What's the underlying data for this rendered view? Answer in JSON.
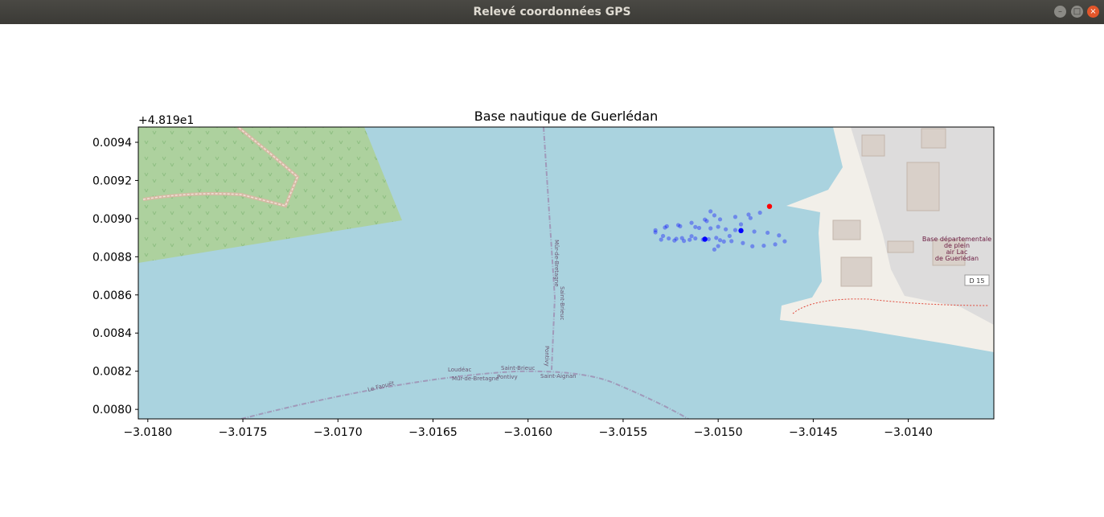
{
  "window": {
    "title": "Relevé coordonnées GPS",
    "buttons": {
      "minimize": "–",
      "maximize": "□",
      "close": "×"
    }
  },
  "colors": {
    "water": "#aad3df",
    "forest": "#add19e",
    "land": "#f2efe9",
    "built": "#dddcdc",
    "buildings": "#d9d0c9",
    "trace": "#0000ff",
    "marker": "#ff0000"
  },
  "map_labels": {
    "poi_line1": "Base départementale",
    "poi_line2": "de plein",
    "poi_line3": "air Lac",
    "poi_line4": "de Guerlédan",
    "road": "D 15",
    "boundary_a": "Loudéac",
    "boundary_b": "Saint-Brieuc",
    "boundary_c": "Mûr-de-Bretagne",
    "boundary_d": "Pontivy",
    "boundary_e": "Saint-Aignan",
    "boundary_f": "Mûr-de-Bretagne",
    "boundary_g": "Saint-Brieuc",
    "boundary_h": "Pontivy",
    "boundary_i": "Le Faouët"
  },
  "chart_data": {
    "type": "scatter",
    "title": "Base nautique de Guerlédan",
    "xlabel": "",
    "ylabel": "",
    "y_offset_label": "+4.819e1",
    "xlim": [
      -3.01805,
      -3.01355
    ],
    "ylim": [
      0.00795,
      0.00948
    ],
    "xticks": [
      -3.018,
      -3.0175,
      -3.017,
      -3.0165,
      -3.016,
      -3.0155,
      -3.015,
      -3.0145,
      -3.014
    ],
    "xtick_labels": [
      "−3.0180",
      "−3.0175",
      "−3.0170",
      "−3.0165",
      "−3.0160",
      "−3.0155",
      "−3.0150",
      "−3.0145",
      "−3.0140"
    ],
    "yticks": [
      0.008,
      0.0082,
      0.0084,
      0.0086,
      0.0088,
      0.009,
      0.0092,
      0.0094
    ],
    "ytick_labels": [
      "0.0080",
      "0.0082",
      "0.0084",
      "0.0086",
      "0.0088",
      "0.0090",
      "0.0092",
      "0.0094"
    ],
    "grid": false,
    "background": "OpenStreetMap tiles",
    "series": [
      {
        "role": "trace",
        "color": "#0000ff",
        "alpha": 0.35,
        "points": [
          [
            -3.01533,
            0.008939
          ],
          [
            -3.01528,
            0.008953
          ],
          [
            -3.01521,
            0.008966
          ],
          [
            -3.01514,
            0.008978
          ],
          [
            -3.01506,
            0.008987
          ],
          [
            -3.01499,
            0.008996
          ],
          [
            -3.01491,
            0.009009
          ],
          [
            -3.01484,
            0.009021
          ],
          [
            -3.01478,
            0.009031
          ],
          [
            -3.01483,
            0.009003
          ],
          [
            -3.01488,
            0.00897
          ],
          [
            -3.01491,
            0.00894
          ],
          [
            -3.01494,
            0.008909
          ],
          [
            -3.01497,
            0.00888
          ],
          [
            -3.015,
            0.008856
          ],
          [
            -3.01502,
            0.008838
          ],
          [
            -3.01501,
            0.008899
          ],
          [
            -3.015,
            0.008957
          ],
          [
            -3.01502,
            0.009017
          ],
          [
            -3.01504,
            0.009038
          ],
          [
            -3.01507,
            0.008995
          ],
          [
            -3.0151,
            0.008951
          ],
          [
            -3.01514,
            0.008908
          ],
          [
            -3.01518,
            0.008883
          ],
          [
            -3.01523,
            0.008885
          ],
          [
            -3.0153,
            0.00889
          ],
          [
            -3.01526,
            0.008896
          ],
          [
            -3.01519,
            0.008898
          ],
          [
            -3.01512,
            0.008896
          ],
          [
            -3.01505,
            0.008892
          ],
          [
            -3.01499,
            0.008887
          ],
          [
            -3.01493,
            0.008882
          ],
          [
            -3.01487,
            0.008872
          ],
          [
            -3.01482,
            0.008855
          ],
          [
            -3.01476,
            0.008858
          ],
          [
            -3.0147,
            0.008865
          ],
          [
            -3.01465,
            0.008881
          ],
          [
            -3.01468,
            0.008912
          ],
          [
            -3.01474,
            0.008926
          ],
          [
            -3.01481,
            0.008932
          ],
          [
            -3.01488,
            0.00894
          ],
          [
            -3.01496,
            0.008944
          ],
          [
            -3.01504,
            0.008949
          ],
          [
            -3.01512,
            0.008956
          ],
          [
            -3.0152,
            0.00896
          ],
          [
            -3.01527,
            0.00896
          ],
          [
            -3.01533,
            0.008928
          ],
          [
            -3.01529,
            0.008909
          ],
          [
            -3.01522,
            0.008894
          ],
          [
            -3.01515,
            0.008889
          ],
          [
            -3.01508,
            0.00889
          ]
        ]
      },
      {
        "role": "trace-emphasis",
        "color": "#0000ff",
        "alpha": 1.0,
        "points": [
          [
            -3.01507,
            0.008892
          ],
          [
            -3.01488,
            0.008937
          ]
        ]
      },
      {
        "role": "marker",
        "color": "#ff0000",
        "alpha": 1.0,
        "points": [
          [
            -3.01473,
            0.009064
          ]
        ]
      }
    ]
  }
}
